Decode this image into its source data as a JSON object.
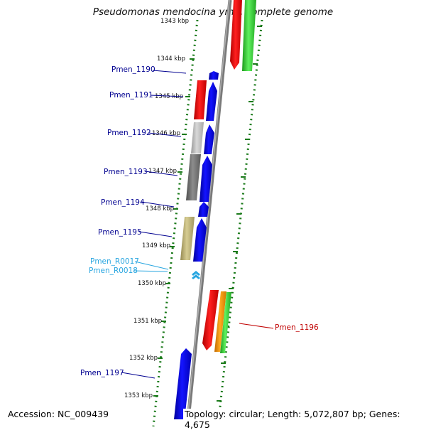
{
  "title": "Pseudomonas mendocina ymp, complete genome",
  "accession": "Accession: NC_009439",
  "footer": "Topology: circular; Length: 5,072,807 bp; Genes: 4,675",
  "colors": {
    "gene_forward": "#0a0ad8",
    "gene_red": "#e80000",
    "gene_green": "#2fc82f",
    "gene_orange": "#f08c00",
    "gene_lightgray": "#b8b8b8",
    "gene_darkgray": "#707070",
    "gene_khaki": "#b8ae74",
    "rna": "#29a6e0",
    "tick": "#1a7a1a",
    "backbone": "#808080",
    "label_blue": "#000090",
    "label_cyan": "#29a6e0",
    "label_red": "#c00000"
  },
  "ruler_labels": [
    "1343 kbp",
    "1344 kbp",
    "1345 kbp",
    "1346 kbp",
    "1347 kbp",
    "1348 kbp",
    "1349 kbp",
    "1350 kbp",
    "1351 kbp",
    "1352 kbp",
    "1353 kbp"
  ],
  "gene_labels": [
    "Pmen_1190",
    "Pmen_1191",
    "Pmen_1192",
    "Pmen_1193",
    "Pmen_1194",
    "Pmen_1195",
    "Pmen_R0017",
    "Pmen_R0018",
    "Pmen_1196",
    "Pmen_1197"
  ]
}
